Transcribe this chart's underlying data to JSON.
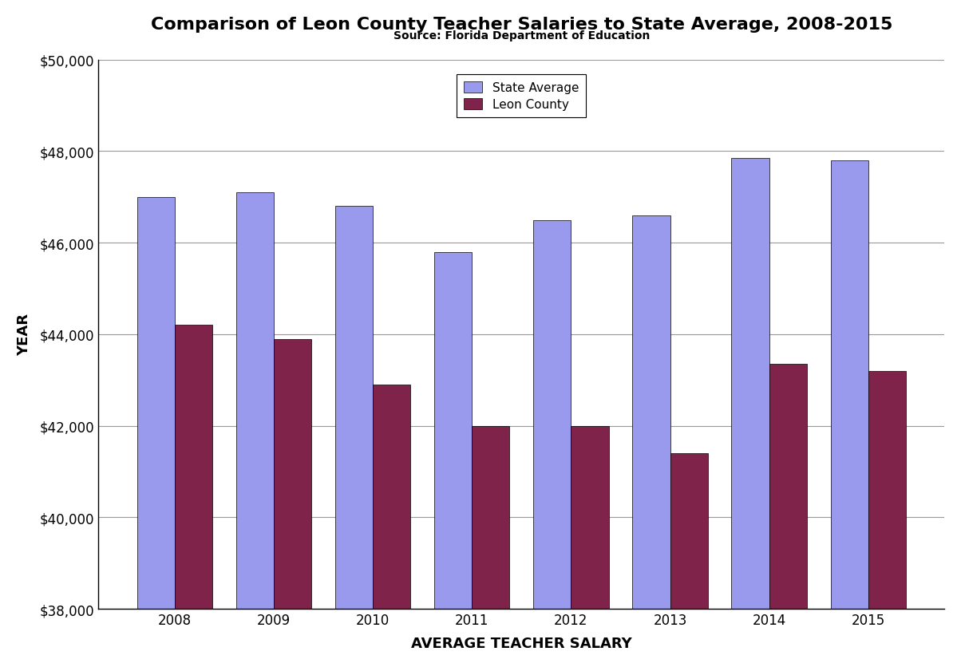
{
  "title": "Comparison of Leon County Teacher Salaries to State Average, 2008-2015",
  "subtitle": "Source: Florida Department of Education",
  "xlabel": "AVERAGE TEACHER SALARY",
  "ylabel": "YEAR",
  "years": [
    2008,
    2009,
    2010,
    2011,
    2012,
    2013,
    2014,
    2015
  ],
  "state_avg": [
    47000,
    47100,
    46800,
    45800,
    46500,
    46600,
    47850,
    47800
  ],
  "leon_county": [
    44200,
    43900,
    42900,
    42000,
    42000,
    41400,
    43350,
    43200
  ],
  "state_color": "#9999EE",
  "leon_color": "#80234A",
  "ylim": [
    38000,
    50000
  ],
  "yticks": [
    38000,
    40000,
    42000,
    44000,
    46000,
    48000,
    50000
  ],
  "bar_width": 0.38,
  "legend_labels": [
    "State Average",
    "Leon County"
  ],
  "background_color": "#ffffff",
  "grid_color": "#999999",
  "title_fontsize": 16,
  "subtitle_fontsize": 10,
  "axis_label_fontsize": 13,
  "tick_fontsize": 12
}
